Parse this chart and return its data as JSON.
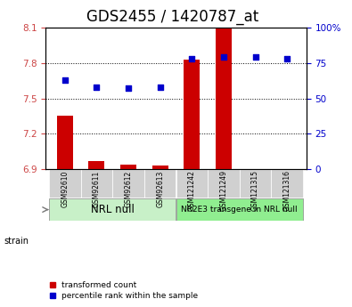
{
  "title": "GDS2455 / 1420787_at",
  "samples": [
    "GSM92610",
    "GSM92611",
    "GSM92612",
    "GSM92613",
    "GSM121242",
    "GSM121249",
    "GSM121315",
    "GSM121316"
  ],
  "transformed_counts": [
    7.35,
    6.97,
    6.94,
    6.93,
    7.83,
    8.09,
    6.9,
    6.9
  ],
  "percentile_ranks": [
    63,
    58,
    57,
    58,
    78,
    79,
    79,
    78
  ],
  "groups": [
    {
      "label": "NRL null",
      "start": 0,
      "end": 4,
      "color": "#c8f0c8"
    },
    {
      "label": "NR2E3 transgene in NRL null",
      "start": 4,
      "end": 8,
      "color": "#90ee90"
    }
  ],
  "ylim_left": [
    6.9,
    8.1
  ],
  "ylim_right": [
    0,
    100
  ],
  "yticks_left": [
    6.9,
    7.2,
    7.5,
    7.8,
    8.1
  ],
  "yticks_right": [
    0,
    25,
    50,
    75,
    100
  ],
  "bar_color": "#cc0000",
  "dot_color": "#0000cc",
  "bar_width": 0.5,
  "bg_color": "#ffffff",
  "plot_bg": "#ffffff",
  "strain_label": "strain",
  "legend_bar": "transformed count",
  "legend_dot": "percentile rank within the sample",
  "title_fontsize": 12,
  "tick_fontsize": 7.5,
  "group1_fontsize": 8.5,
  "group2_fontsize": 6.5
}
